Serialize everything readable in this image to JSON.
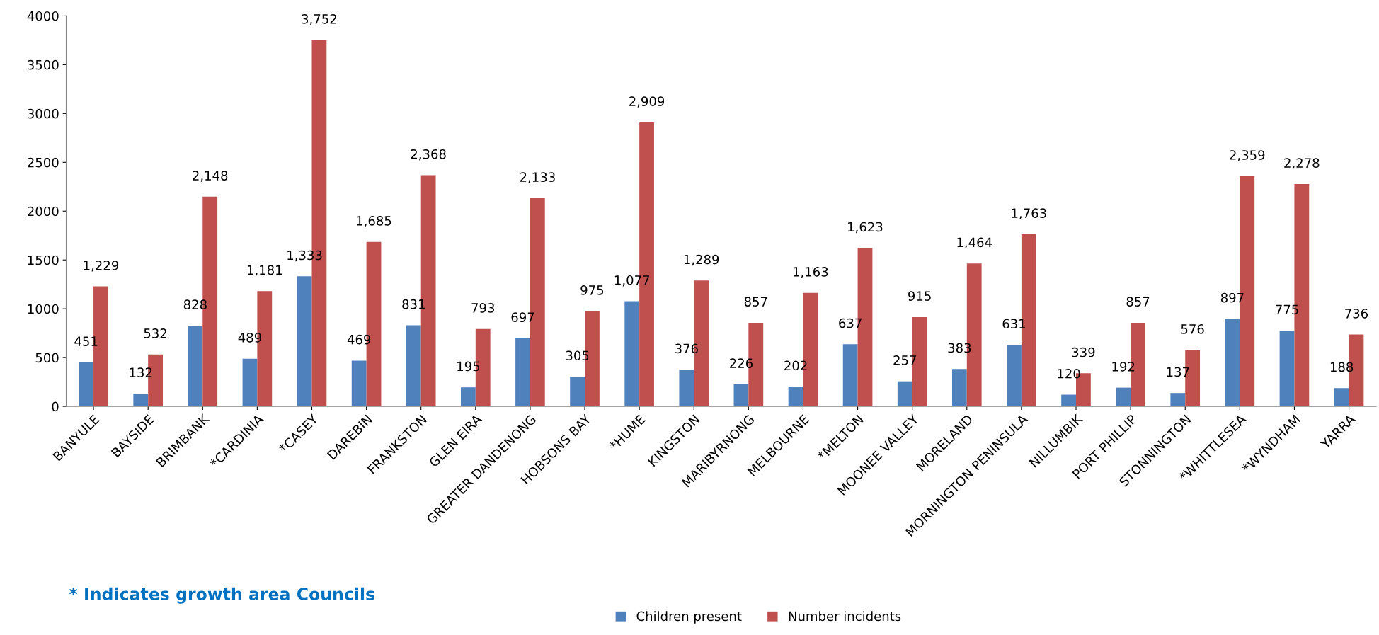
{
  "chart_data": {
    "type": "bar",
    "categories": [
      "BANYULE",
      "BAYSIDE",
      "BRIMBANK",
      "*CARDINIA",
      "*CASEY",
      "DAREBIN",
      "FRANKSTON",
      "GLEN EIRA",
      "GREATER DANDENONG",
      "HOBSONS BAY",
      "*HUME",
      "KINGSTON",
      "MARIBYRNONG",
      "MELBOURNE",
      "*MELTON",
      "MOONEE VALLEY",
      "MORELAND",
      "MORNINGTON PENINSULA",
      "NILLUMBIK",
      "PORT PHILLIP",
      "STONNINGTON",
      "*WHITTLESEA",
      "*WYNDHAM",
      "YARRA"
    ],
    "series": [
      {
        "name": "Children present",
        "color": "#4f81bd",
        "values": [
          451,
          132,
          828,
          489,
          1333,
          469,
          831,
          195,
          697,
          305,
          1077,
          376,
          226,
          202,
          637,
          257,
          383,
          631,
          120,
          192,
          137,
          897,
          775,
          188
        ],
        "value_labels": [
          "451",
          "132",
          "828",
          "489",
          "1,333",
          "469",
          "831",
          "195",
          "697",
          "305",
          "1,077",
          "376",
          "226",
          "202",
          "637",
          "257",
          "383",
          "631",
          "120",
          "192",
          "137",
          "897",
          "775",
          "188"
        ]
      },
      {
        "name": "Number incidents",
        "color": "#c0504d",
        "values": [
          1229,
          532,
          2148,
          1181,
          3752,
          1685,
          2368,
          793,
          2133,
          975,
          2909,
          1289,
          857,
          1163,
          1623,
          915,
          1464,
          1763,
          339,
          857,
          576,
          2359,
          2278,
          736
        ],
        "value_labels": [
          "1,229",
          "532",
          "2,148",
          "1,181",
          "3,752",
          "1,685",
          "2,368",
          "793",
          "2,133",
          "975",
          "2,909",
          "1,289",
          "857",
          "1,163",
          "1,623",
          "915",
          "1,464",
          "1,763",
          "339",
          "857",
          "576",
          "2,359",
          "2,278",
          "736"
        ]
      }
    ],
    "ylim": [
      0,
      4000
    ],
    "yticks": [
      0,
      500,
      1000,
      1500,
      2000,
      2500,
      3000,
      3500,
      4000
    ],
    "grid": false,
    "legend": "bottom",
    "annotations": [
      "* Indicates growth area Councils"
    ]
  }
}
